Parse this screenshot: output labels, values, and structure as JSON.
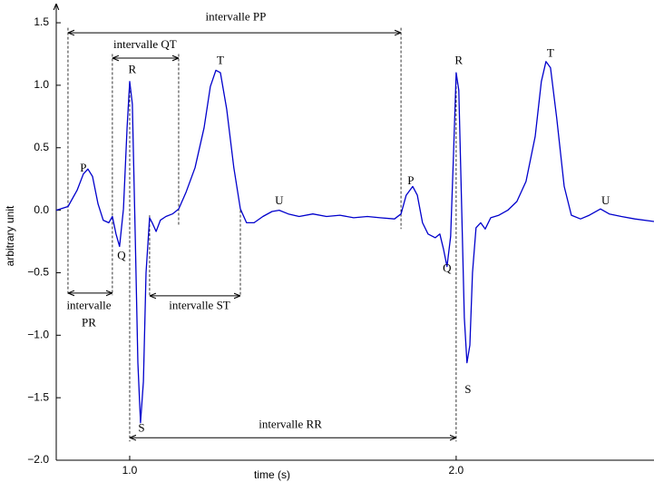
{
  "chart_data": {
    "type": "line",
    "xlabel": "time (s)",
    "ylabel": "arbitrary unit",
    "xlim": [
      0.775,
      2.606
    ],
    "ylim": [
      -2.0,
      1.6
    ],
    "xticks": [
      {
        "value": 1.0,
        "label": "1.0"
      },
      {
        "value": 2.0,
        "label": "2.0"
      }
    ],
    "yticks": [
      {
        "value": -2.0,
        "label": "−2.0"
      },
      {
        "value": -1.5,
        "label": "−1.5"
      },
      {
        "value": -1.0,
        "label": "−1.0"
      },
      {
        "value": -0.5,
        "label": "−0.5"
      },
      {
        "value": 0.0,
        "label": "0.0"
      },
      {
        "value": 0.5,
        "label": "0.5"
      },
      {
        "value": 1.0,
        "label": "1.0"
      },
      {
        "value": 1.5,
        "label": "1.5"
      }
    ],
    "grid": false,
    "series": [
      {
        "color": "#0000cc",
        "x": [
          0.775,
          0.811,
          0.839,
          0.858,
          0.872,
          0.886,
          0.903,
          0.919,
          0.936,
          0.947,
          0.958,
          0.969,
          0.981,
          0.992,
          1.0,
          1.008,
          1.017,
          1.025,
          1.033,
          1.042,
          1.05,
          1.061,
          1.069,
          1.081,
          1.094,
          1.111,
          1.131,
          1.15,
          1.172,
          1.2,
          1.228,
          1.247,
          1.264,
          1.278,
          1.297,
          1.319,
          1.339,
          1.358,
          1.381,
          1.408,
          1.436,
          1.458,
          1.486,
          1.519,
          1.561,
          1.603,
          1.644,
          1.686,
          1.728,
          1.767,
          1.811,
          1.831,
          1.847,
          1.867,
          1.881,
          1.897,
          1.914,
          1.936,
          1.95,
          1.961,
          1.972,
          1.983,
          1.992,
          2.0,
          2.008,
          2.017,
          2.025,
          2.033,
          2.042,
          2.05,
          2.061,
          2.075,
          2.089,
          2.106,
          2.131,
          2.158,
          2.186,
          2.214,
          2.242,
          2.261,
          2.275,
          2.289,
          2.308,
          2.331,
          2.353,
          2.381,
          2.408,
          2.442,
          2.469,
          2.506,
          2.547,
          2.606
        ],
        "values": [
          0,
          0.03,
          0.16,
          0.29,
          0.33,
          0.27,
          0.05,
          -0.08,
          -0.1,
          -0.05,
          -0.19,
          -0.29,
          0.01,
          0.66,
          1.03,
          0.85,
          -0.21,
          -1.22,
          -1.7,
          -1.37,
          -0.5,
          -0.06,
          -0.1,
          -0.17,
          -0.08,
          -0.05,
          -0.03,
          0.01,
          0.14,
          0.34,
          0.66,
          0.99,
          1.12,
          1.1,
          0.81,
          0.34,
          0.01,
          -0.1,
          -0.1,
          -0.05,
          -0.01,
          0,
          -0.03,
          -0.05,
          -0.03,
          -0.05,
          -0.04,
          -0.06,
          -0.05,
          -0.06,
          -0.07,
          -0.03,
          0.12,
          0.19,
          0.12,
          -0.1,
          -0.19,
          -0.22,
          -0.19,
          -0.31,
          -0.45,
          -0.21,
          0.45,
          1.1,
          0.96,
          0.01,
          -0.86,
          -1.22,
          -1.08,
          -0.5,
          -0.14,
          -0.1,
          -0.15,
          -0.06,
          -0.04,
          0,
          0.07,
          0.23,
          0.59,
          1.03,
          1.19,
          1.14,
          0.74,
          0.19,
          -0.04,
          -0.07,
          -0.04,
          0.01,
          -0.03,
          -0.05,
          -0.07,
          -0.09
        ]
      }
    ],
    "annotations": [
      {
        "text": "P",
        "x": 0.858,
        "y": 0.33
      },
      {
        "text": "Q",
        "x": 0.975,
        "y": -0.37
      },
      {
        "text": "R",
        "x": 1.008,
        "y": 1.12
      },
      {
        "text": "S",
        "x": 1.036,
        "y": -1.75
      },
      {
        "text": "T",
        "x": 1.278,
        "y": 1.19
      },
      {
        "text": "U",
        "x": 1.458,
        "y": 0.07
      },
      {
        "text": "P",
        "x": 1.861,
        "y": 0.23
      },
      {
        "text": "Q",
        "x": 1.972,
        "y": -0.47
      },
      {
        "text": "R",
        "x": 2.008,
        "y": 1.19
      },
      {
        "text": "S",
        "x": 2.036,
        "y": -1.44
      },
      {
        "text": "T",
        "x": 2.289,
        "y": 1.25
      },
      {
        "text": "U",
        "x": 2.458,
        "y": 0.07
      }
    ],
    "intervals": [
      {
        "label": [
          "intervalle PP"
        ],
        "from": 0.811,
        "to": 1.831,
        "y": 1.42,
        "label_x": 1.325,
        "label_y": 1.54
      },
      {
        "label": [
          "intervalle QT"
        ],
        "from": 0.947,
        "to": 1.15,
        "y": 1.217,
        "label_x": 1.047,
        "label_y": 1.32
      },
      {
        "label": [
          "intervalle",
          "PR"
        ],
        "from": 0.811,
        "to": 0.947,
        "y": -0.663,
        "label_x": 0.875,
        "label_y": -0.77
      },
      {
        "label": [
          "intervalle ST"
        ],
        "from": 1.061,
        "to": 1.339,
        "y": -0.685,
        "label_x": 1.214,
        "label_y": -0.77
      },
      {
        "label": [
          "intervalle RR"
        ],
        "from": 1.0,
        "to": 2.0,
        "y": -1.82,
        "label_x": 1.492,
        "label_y": -1.72
      }
    ],
    "guides": [
      {
        "x": 0.811,
        "y": [
          1.46,
          -0.68
        ]
      },
      {
        "x": 0.947,
        "y": [
          1.25,
          -0.68
        ]
      },
      {
        "x": 1.0,
        "y": [
          1.03,
          -1.85
        ]
      },
      {
        "x": 1.061,
        "y": [
          -0.04,
          -0.68
        ]
      },
      {
        "x": 1.15,
        "y": [
          1.25,
          -0.12
        ]
      },
      {
        "x": 1.339,
        "y": [
          0.0,
          -0.68
        ]
      },
      {
        "x": 1.831,
        "y": [
          1.46,
          -0.15
        ]
      },
      {
        "x": 2.0,
        "y": [
          1.1,
          -1.85
        ]
      }
    ]
  }
}
